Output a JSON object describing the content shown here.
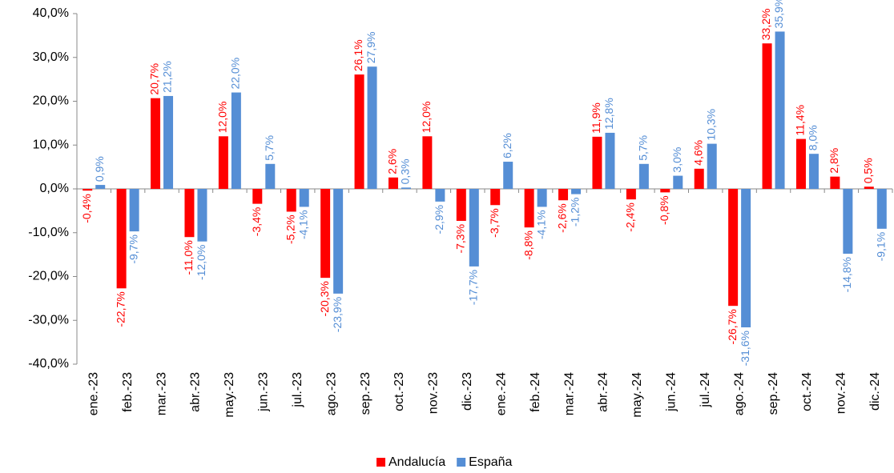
{
  "chart_data": {
    "type": "bar",
    "categories": [
      "ene.-23",
      "feb.-23",
      "mar.-23",
      "abr.-23",
      "may.-23",
      "jun.-23",
      "jul.-23",
      "ago.-23",
      "sep.-23",
      "oct.-23",
      "nov.-23",
      "dic.-23",
      "ene.-24",
      "feb.-24",
      "mar.-24",
      "abr.-24",
      "may.-24",
      "jun.-24",
      "jul.-24",
      "ago.-24",
      "sep.-24",
      "oct.-24",
      "nov.-24",
      "dic.-24"
    ],
    "series": [
      {
        "name": "Andalucía",
        "color": "#ff0000",
        "values": [
          -0.4,
          -22.7,
          20.7,
          -11.0,
          12.0,
          -3.4,
          -5.2,
          -20.3,
          26.1,
          2.6,
          12.0,
          -7.3,
          -3.7,
          -8.8,
          -2.6,
          11.9,
          -2.4,
          -0.8,
          4.6,
          -26.7,
          33.2,
          11.4,
          2.8,
          0.5
        ],
        "value_labels": [
          "-0,4%",
          "-22,7%",
          "20,7%",
          "-11,0%",
          "12,0%",
          "-3,4%",
          "-5,2%",
          "-20,3%",
          "26,1%",
          "2,6%",
          "12,0%",
          "-7,3%",
          "-3,7%",
          "-8,8%",
          "-2,6%",
          "11,9%",
          "-2,4%",
          "-0,8%",
          "4,6%",
          "-26,7%",
          "33,2%",
          "11,4%",
          "2,8%",
          "0,5%"
        ]
      },
      {
        "name": "España",
        "color": "#558ed5",
        "values": [
          0.9,
          -9.7,
          21.2,
          -12.0,
          22.0,
          5.7,
          -4.1,
          -23.9,
          27.9,
          0.3,
          -2.9,
          -17.7,
          6.2,
          -4.1,
          -1.2,
          12.8,
          5.7,
          3.0,
          10.3,
          -31.6,
          35.9,
          8.0,
          -14.8,
          -9.1
        ],
        "value_labels": [
          "0,9%",
          "-9,7%",
          "21,2%",
          "-12,0%",
          "22,0%",
          "5,7%",
          "-4,1%",
          "-23,9%",
          "27,9%",
          "0,3%",
          "-2,9%",
          "-17,7%",
          "6,2%",
          "-4,1%",
          "-1,2%",
          "12,8%",
          "5,7%",
          "3,0%",
          "10,3%",
          "-31,6%",
          "35,9%",
          "8,0%",
          "-14,8%",
          "-9,1%"
        ]
      }
    ],
    "ylim": [
      -40,
      40
    ],
    "yticks": [
      {
        "value": -40,
        "label": "-40,0%"
      },
      {
        "value": -30,
        "label": "-30,0%"
      },
      {
        "value": -20,
        "label": "-20,0%"
      },
      {
        "value": -10,
        "label": "-10,0%"
      },
      {
        "value": 0,
        "label": "0,0%"
      },
      {
        "value": 10,
        "label": "10,0%"
      },
      {
        "value": 20,
        "label": "20,0%"
      },
      {
        "value": 30,
        "label": "30,0%"
      },
      {
        "value": 40,
        "label": "40,0%"
      }
    ],
    "legend": "bottom"
  }
}
